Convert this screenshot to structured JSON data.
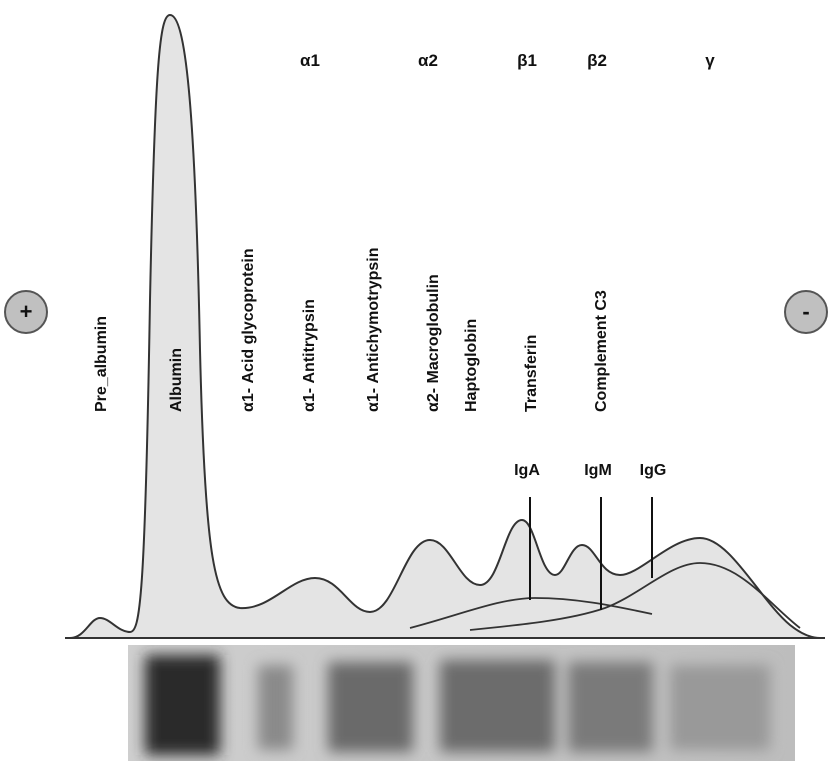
{
  "fractions": [
    "α1",
    "α2",
    "β1",
    "β2",
    "γ"
  ],
  "proteins": [
    "Pre_albumin",
    "Albumin",
    "α1- Acid glycoprotein",
    "α1- Antitrypsin",
    "α1- Antichymotrypsin",
    "α2- Macroglobulin",
    "Haptoglobin",
    "Transferin",
    "Complement C3"
  ],
  "immunoglobulins": [
    "IgA",
    "IgM",
    "IgG"
  ],
  "electrodes": {
    "anode": "+",
    "cathode": "-"
  }
}
